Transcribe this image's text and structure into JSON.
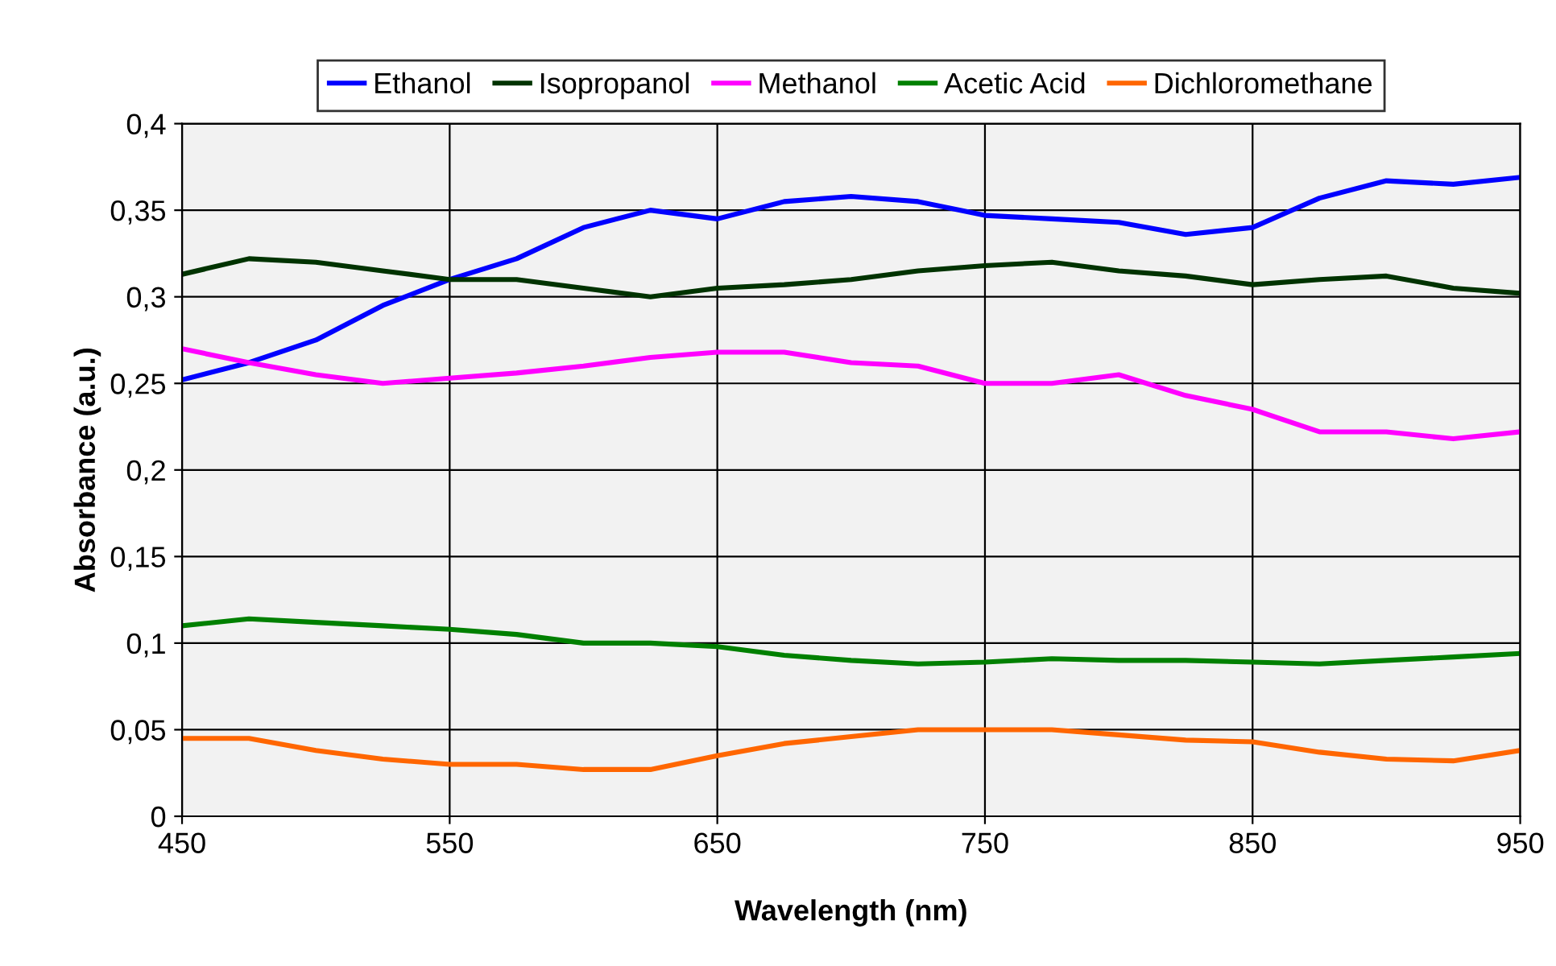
{
  "chart_data": {
    "type": "line",
    "xlabel": "Wavelength (nm)",
    "ylabel": "Absorbance (a.u.)",
    "x": [
      450,
      475,
      500,
      525,
      550,
      575,
      600,
      625,
      650,
      675,
      700,
      725,
      750,
      775,
      800,
      825,
      850,
      875,
      900,
      925,
      950
    ],
    "series": [
      {
        "name": "Ethanol",
        "color": "#0000ff",
        "values": [
          0.252,
          0.262,
          0.275,
          0.295,
          0.31,
          0.322,
          0.34,
          0.35,
          0.345,
          0.355,
          0.358,
          0.355,
          0.347,
          0.345,
          0.343,
          0.336,
          0.34,
          0.357,
          0.367,
          0.365,
          0.369
        ]
      },
      {
        "name": "Isopropanol",
        "color": "#003300",
        "values": [
          0.313,
          0.322,
          0.32,
          0.315,
          0.31,
          0.31,
          0.305,
          0.3,
          0.305,
          0.307,
          0.31,
          0.315,
          0.318,
          0.32,
          0.315,
          0.312,
          0.307,
          0.31,
          0.312,
          0.305,
          0.302
        ]
      },
      {
        "name": "Methanol",
        "color": "#ff00ff",
        "values": [
          0.27,
          0.262,
          0.255,
          0.25,
          0.253,
          0.256,
          0.26,
          0.265,
          0.268,
          0.268,
          0.262,
          0.26,
          0.25,
          0.25,
          0.255,
          0.243,
          0.235,
          0.222,
          0.222,
          0.218,
          0.222
        ]
      },
      {
        "name": "Acetic Acid",
        "color": "#008000",
        "values": [
          0.11,
          0.114,
          0.112,
          0.11,
          0.108,
          0.105,
          0.1,
          0.1,
          0.098,
          0.093,
          0.09,
          0.088,
          0.089,
          0.091,
          0.09,
          0.09,
          0.089,
          0.088,
          0.09,
          0.092,
          0.094
        ]
      },
      {
        "name": "Dichloromethane",
        "color": "#ff6600",
        "values": [
          0.045,
          0.045,
          0.038,
          0.033,
          0.03,
          0.03,
          0.027,
          0.027,
          0.035,
          0.042,
          0.046,
          0.05,
          0.05,
          0.05,
          0.047,
          0.044,
          0.043,
          0.037,
          0.033,
          0.032,
          0.038
        ]
      }
    ],
    "xlim": [
      450,
      950
    ],
    "xticks": [
      450,
      550,
      650,
      750,
      850,
      950
    ],
    "ylim": [
      0,
      0.4
    ],
    "yticks": [
      0,
      {
        "value": 0.05,
        "label": "0,05"
      },
      {
        "value": 0.1,
        "label": "0,1"
      },
      {
        "value": 0.15,
        "label": "0,15"
      },
      {
        "value": 0.2,
        "label": "0,2"
      },
      {
        "value": 0.25,
        "label": "0,25"
      },
      {
        "value": 0.3,
        "label": "0,3"
      },
      {
        "value": 0.35,
        "label": "0,35"
      },
      {
        "value": 0.4,
        "label": "0,4"
      }
    ],
    "grid": true,
    "legend": "top",
    "marker": "none",
    "line_style": "solid"
  }
}
